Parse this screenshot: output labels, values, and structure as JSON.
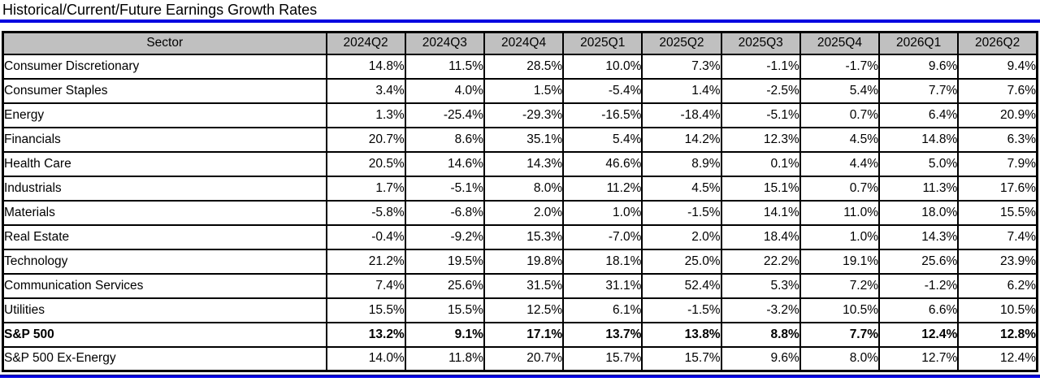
{
  "title": "Historical/Current/Future Earnings Growth Rates",
  "colors": {
    "rule_blue": "#0000E0",
    "header_gray": "#C0C0C0",
    "border_black": "#000000"
  },
  "table": {
    "columns": [
      "Sector",
      "2024Q2",
      "2024Q3",
      "2024Q4",
      "2025Q1",
      "2025Q2",
      "2025Q3",
      "2025Q4",
      "2026Q1",
      "2026Q2"
    ],
    "rows": [
      {
        "sector": "Consumer Discretionary",
        "bold": false,
        "values": [
          "14.8%",
          "11.5%",
          "28.5%",
          "10.0%",
          "7.3%",
          "-1.1%",
          "-1.7%",
          "9.6%",
          "9.4%"
        ]
      },
      {
        "sector": "Consumer Staples",
        "bold": false,
        "values": [
          "3.4%",
          "4.0%",
          "1.5%",
          "-5.4%",
          "1.4%",
          "-2.5%",
          "5.4%",
          "7.7%",
          "7.6%"
        ]
      },
      {
        "sector": "Energy",
        "bold": false,
        "values": [
          "1.3%",
          "-25.4%",
          "-29.3%",
          "-16.5%",
          "-18.4%",
          "-5.1%",
          "0.7%",
          "6.4%",
          "20.9%"
        ]
      },
      {
        "sector": "Financials",
        "bold": false,
        "values": [
          "20.7%",
          "8.6%",
          "35.1%",
          "5.4%",
          "14.2%",
          "12.3%",
          "4.5%",
          "14.8%",
          "6.3%"
        ]
      },
      {
        "sector": "Health Care",
        "bold": false,
        "values": [
          "20.5%",
          "14.6%",
          "14.3%",
          "46.6%",
          "8.9%",
          "0.1%",
          "4.4%",
          "5.0%",
          "7.9%"
        ]
      },
      {
        "sector": "Industrials",
        "bold": false,
        "values": [
          "1.7%",
          "-5.1%",
          "8.0%",
          "11.2%",
          "4.5%",
          "15.1%",
          "0.7%",
          "11.3%",
          "17.6%"
        ]
      },
      {
        "sector": "Materials",
        "bold": false,
        "values": [
          "-5.8%",
          "-6.8%",
          "2.0%",
          "1.0%",
          "-1.5%",
          "14.1%",
          "11.0%",
          "18.0%",
          "15.5%"
        ]
      },
      {
        "sector": "Real Estate",
        "bold": false,
        "values": [
          "-0.4%",
          "-9.2%",
          "15.3%",
          "-7.0%",
          "2.0%",
          "18.4%",
          "1.0%",
          "14.3%",
          "7.4%"
        ]
      },
      {
        "sector": "Technology",
        "bold": false,
        "values": [
          "21.2%",
          "19.5%",
          "19.8%",
          "18.1%",
          "25.0%",
          "22.2%",
          "19.1%",
          "25.6%",
          "23.9%"
        ]
      },
      {
        "sector": "Communication Services",
        "bold": false,
        "values": [
          "7.4%",
          "25.6%",
          "31.5%",
          "31.1%",
          "52.4%",
          "5.3%",
          "7.2%",
          "-1.2%",
          "6.2%"
        ]
      },
      {
        "sector": "Utilities",
        "bold": false,
        "values": [
          "15.5%",
          "15.5%",
          "12.5%",
          "6.1%",
          "-1.5%",
          "-3.2%",
          "10.5%",
          "6.6%",
          "10.5%"
        ]
      },
      {
        "sector": "S&P 500",
        "bold": true,
        "values": [
          "13.2%",
          "9.1%",
          "17.1%",
          "13.7%",
          "13.8%",
          "8.8%",
          "7.7%",
          "12.4%",
          "12.8%"
        ]
      },
      {
        "sector": "S&P 500 Ex-Energy",
        "bold": false,
        "values": [
          "14.0%",
          "11.8%",
          "20.7%",
          "15.7%",
          "15.7%",
          "9.6%",
          "8.0%",
          "12.7%",
          "12.4%"
        ]
      }
    ]
  }
}
